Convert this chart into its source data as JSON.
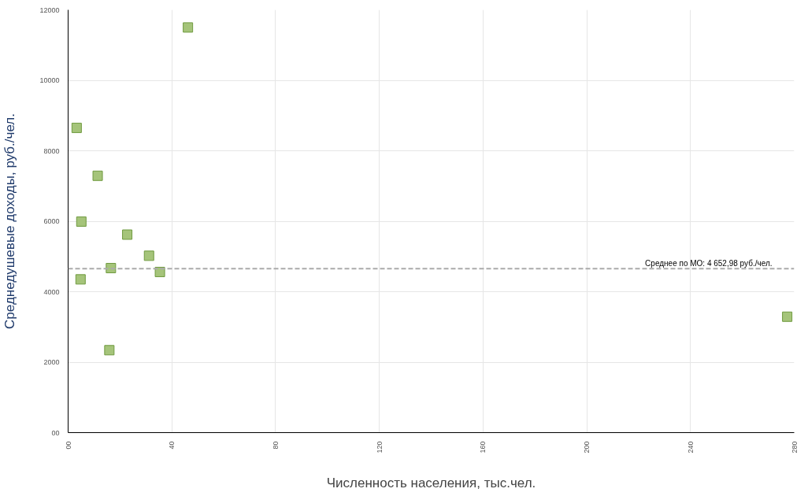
{
  "chart_data": {
    "type": "scatter",
    "xlabel": "Численность населения, тыс.чел.",
    "ylabel": "Среднедушевые доходы, руб./чел.",
    "x": [
      3.3,
      46.2,
      11.4,
      5.1,
      22.8,
      31.2,
      16.5,
      35.4,
      4.8,
      15.9,
      277.3
    ],
    "series": [
      {
        "color": "#a5c47a",
        "values": [
          8650,
          11500,
          7290,
          5990,
          5620,
          5020,
          4670,
          4560,
          4350,
          2340,
          3290
        ]
      }
    ],
    "xlim": [
      0,
      280
    ],
    "ylim": [
      0,
      12000
    ],
    "xticks": [
      {
        "value": 0,
        "label": "00"
      },
      40,
      80,
      120,
      160,
      200,
      240,
      280
    ],
    "yticks": [
      {
        "value": 0,
        "label": "00"
      },
      2000,
      4000,
      6000,
      8000,
      10000,
      12000
    ],
    "ref_lines": [
      {
        "axis": "y",
        "value": 4652.98,
        "label": "Среднее по МО: 4 652,98 руб./чел.",
        "color": "#aaaaaa",
        "line_style": "dashed"
      }
    ],
    "grid": true,
    "marker": "square"
  }
}
